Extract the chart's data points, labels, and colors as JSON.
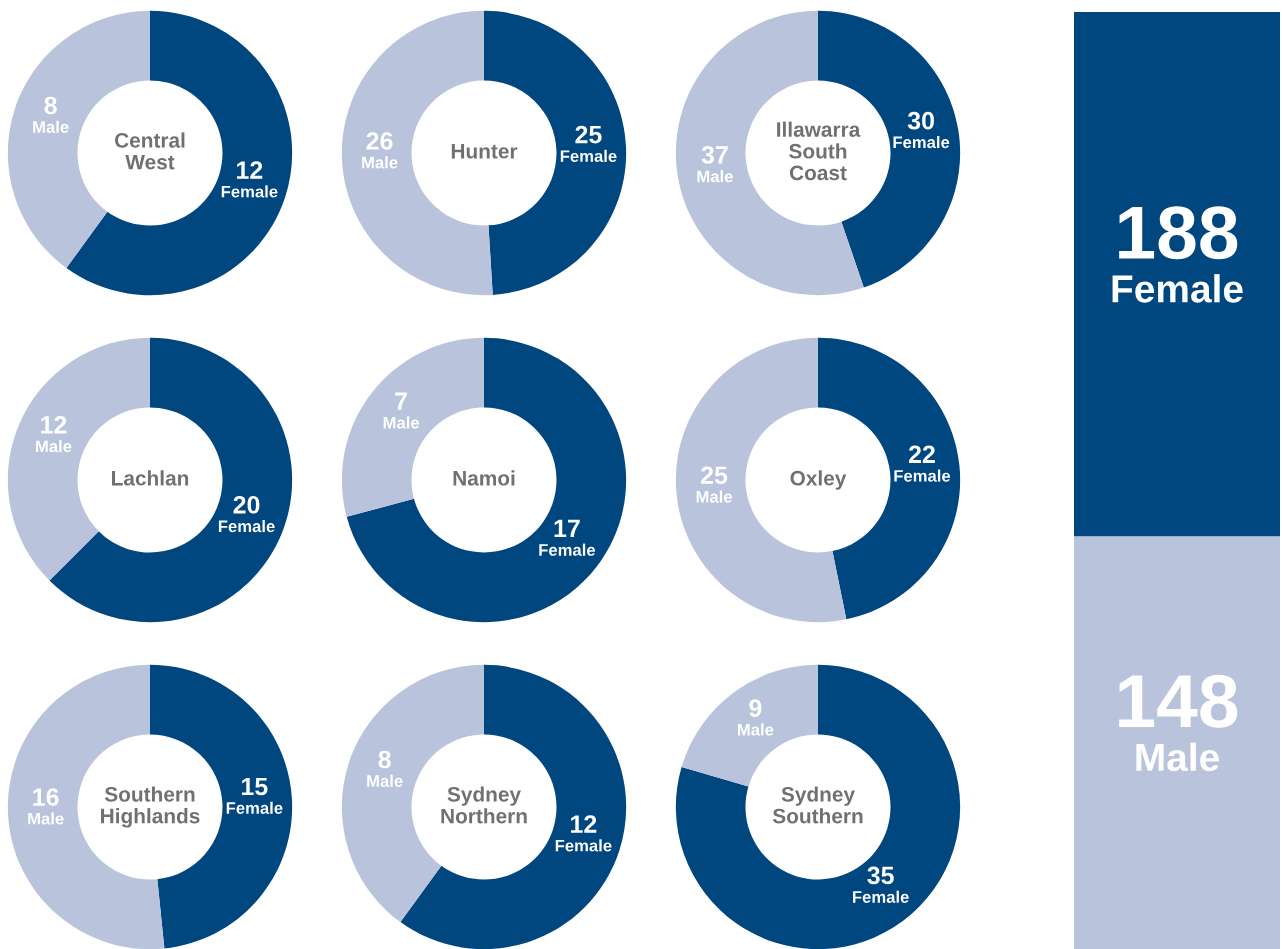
{
  "chart_data": [
    {
      "type": "donut",
      "title": "Central West",
      "categories": [
        "Female",
        "Male"
      ],
      "values": [
        12,
        8
      ],
      "colors": [
        "#00467f",
        "#b9c4dc"
      ],
      "data_labels": true
    },
    {
      "type": "donut",
      "title": "Hunter",
      "categories": [
        "Female",
        "Male"
      ],
      "values": [
        25,
        26
      ],
      "colors": [
        "#00467f",
        "#b9c4dc"
      ],
      "data_labels": true
    },
    {
      "type": "donut",
      "title": "Illawarra South Coast",
      "categories": [
        "Female",
        "Male"
      ],
      "values": [
        30,
        37
      ],
      "colors": [
        "#00467f",
        "#b9c4dc"
      ],
      "data_labels": true
    },
    {
      "type": "donut",
      "title": "Lachlan",
      "categories": [
        "Female",
        "Male"
      ],
      "values": [
        20,
        12
      ],
      "colors": [
        "#00467f",
        "#b9c4dc"
      ],
      "data_labels": true
    },
    {
      "type": "donut",
      "title": "Namoi",
      "categories": [
        "Female",
        "Male"
      ],
      "values": [
        17,
        7
      ],
      "colors": [
        "#00467f",
        "#b9c4dc"
      ],
      "data_labels": true
    },
    {
      "type": "donut",
      "title": "Oxley",
      "categories": [
        "Female",
        "Male"
      ],
      "values": [
        22,
        25
      ],
      "colors": [
        "#00467f",
        "#b9c4dc"
      ],
      "data_labels": true
    },
    {
      "type": "donut",
      "title": "Southern Highlands",
      "categories": [
        "Female",
        "Male"
      ],
      "values": [
        15,
        16
      ],
      "colors": [
        "#00467f",
        "#b9c4dc"
      ],
      "data_labels": true
    },
    {
      "type": "donut",
      "title": "Sydney Northern",
      "categories": [
        "Female",
        "Male"
      ],
      "values": [
        12,
        8
      ],
      "colors": [
        "#00467f",
        "#b9c4dc"
      ],
      "data_labels": true
    },
    {
      "type": "donut",
      "title": "Sydney Southern",
      "categories": [
        "Female",
        "Male"
      ],
      "values": [
        35,
        9
      ],
      "colors": [
        "#00467f",
        "#b9c4dc"
      ],
      "data_labels": true
    },
    {
      "type": "bar",
      "stacked": true,
      "categories": [
        null
      ],
      "ylim": [
        0,
        336
      ],
      "data_labels": true,
      "series": [
        {
          "name": "Male",
          "color": "#b9c4dc",
          "values": [
            148
          ]
        },
        {
          "name": "Female",
          "color": "#00467f",
          "values": [
            188
          ]
        }
      ]
    }
  ]
}
